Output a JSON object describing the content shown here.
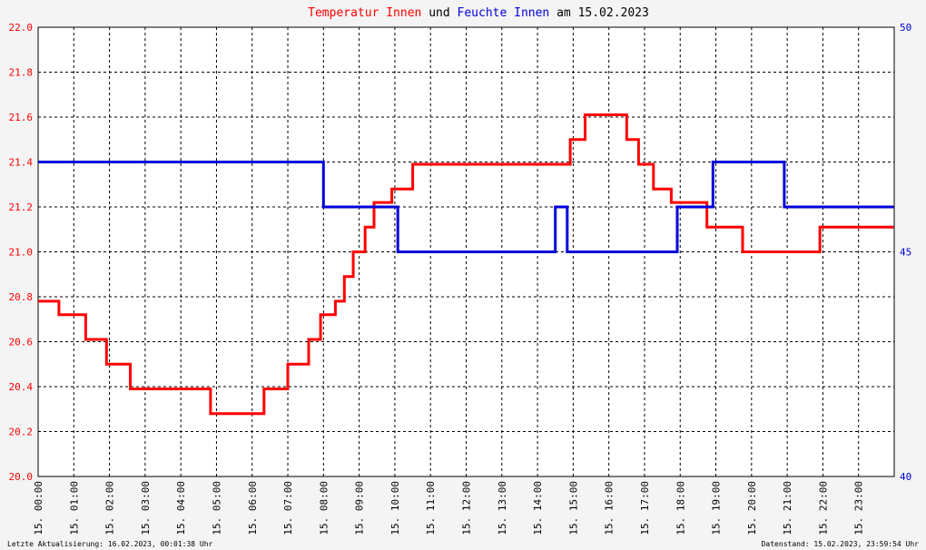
{
  "title": {
    "part1": "Temperatur Innen",
    "part2": " und ",
    "part3": "Feuchte Innen",
    "part4": " am 15.02.2023"
  },
  "footer": {
    "left": "Letzte Aktualisierung: 16.02.2023, 00:01:38 Uhr",
    "right": "Datenstand: 15.02.2023, 23:59:54 Uhr"
  },
  "colors": {
    "temperature": "#ff0000",
    "humidity": "#0000dd",
    "grid": "#000000"
  },
  "chart_data": {
    "type": "line",
    "title": "Temperatur Innen und Feuchte Innen am 15.02.2023",
    "xlabel": "",
    "ylabel": "",
    "x_ticks": [
      "15. 00:00",
      "15. 01:00",
      "15. 02:00",
      "15. 03:00",
      "15. 04:00",
      "15. 05:00",
      "15. 06:00",
      "15. 07:00",
      "15. 08:00",
      "15. 09:00",
      "15. 10:00",
      "15. 11:00",
      "15. 12:00",
      "15. 13:00",
      "15. 14:00",
      "15. 15:00",
      "15. 16:00",
      "15. 17:00",
      "15. 18:00",
      "15. 19:00",
      "15. 20:00",
      "15. 21:00",
      "15. 22:00",
      "15. 23:00"
    ],
    "xlim": [
      "15.02.2023 00:00",
      "15.02.2023 24:00"
    ],
    "y_left": {
      "min": 20.0,
      "max": 22.0,
      "ticks": [
        "20.0",
        "20.2",
        "20.4",
        "20.6",
        "20.8",
        "21.0",
        "21.2",
        "21.4",
        "21.6",
        "21.8",
        "22.0"
      ]
    },
    "y_right": {
      "min": 40,
      "max": 50,
      "ticks": [
        "40",
        "45",
        "50"
      ]
    },
    "grid": true,
    "series": [
      {
        "name": "Temperatur Innen",
        "axis": "left",
        "points": [
          [
            "00:00",
            20.78
          ],
          [
            "00:35",
            20.78
          ],
          [
            "00:35",
            20.72
          ],
          [
            "01:20",
            20.72
          ],
          [
            "01:20",
            20.61
          ],
          [
            "01:55",
            20.61
          ],
          [
            "01:55",
            20.5
          ],
          [
            "02:35",
            20.5
          ],
          [
            "02:35",
            20.39
          ],
          [
            "04:50",
            20.39
          ],
          [
            "04:50",
            20.28
          ],
          [
            "06:20",
            20.28
          ],
          [
            "06:20",
            20.39
          ],
          [
            "07:00",
            20.39
          ],
          [
            "07:00",
            20.5
          ],
          [
            "07:35",
            20.5
          ],
          [
            "07:35",
            20.61
          ],
          [
            "07:55",
            20.61
          ],
          [
            "07:55",
            20.72
          ],
          [
            "08:20",
            20.72
          ],
          [
            "08:20",
            20.78
          ],
          [
            "08:35",
            20.78
          ],
          [
            "08:35",
            20.89
          ],
          [
            "08:50",
            20.89
          ],
          [
            "08:50",
            21.0
          ],
          [
            "09:10",
            21.0
          ],
          [
            "09:10",
            21.11
          ],
          [
            "09:25",
            21.11
          ],
          [
            "09:25",
            21.22
          ],
          [
            "09:55",
            21.22
          ],
          [
            "09:55",
            21.28
          ],
          [
            "10:30",
            21.28
          ],
          [
            "10:30",
            21.39
          ],
          [
            "14:55",
            21.39
          ],
          [
            "14:55",
            21.5
          ],
          [
            "15:20",
            21.5
          ],
          [
            "15:20",
            21.61
          ],
          [
            "16:30",
            21.61
          ],
          [
            "16:30",
            21.5
          ],
          [
            "16:50",
            21.5
          ],
          [
            "16:50",
            21.39
          ],
          [
            "17:15",
            21.39
          ],
          [
            "17:15",
            21.28
          ],
          [
            "17:45",
            21.28
          ],
          [
            "17:45",
            21.22
          ],
          [
            "18:45",
            21.22
          ],
          [
            "18:45",
            21.11
          ],
          [
            "19:45",
            21.11
          ],
          [
            "19:45",
            21.0
          ],
          [
            "21:55",
            21.0
          ],
          [
            "21:55",
            21.11
          ],
          [
            "23:10",
            21.11
          ],
          [
            "23:10",
            21.11
          ],
          [
            "23:59",
            21.11
          ]
        ]
      },
      {
        "name": "Feuchte Innen",
        "axis": "right",
        "points": [
          [
            "00:00",
            47
          ],
          [
            "08:00",
            47
          ],
          [
            "08:00",
            46
          ],
          [
            "10:05",
            46
          ],
          [
            "10:05",
            45
          ],
          [
            "14:30",
            45
          ],
          [
            "14:30",
            46
          ],
          [
            "14:50",
            46
          ],
          [
            "14:50",
            45
          ],
          [
            "17:55",
            45
          ],
          [
            "17:55",
            46
          ],
          [
            "18:55",
            46
          ],
          [
            "18:55",
            47
          ],
          [
            "20:55",
            47
          ],
          [
            "20:55",
            46
          ],
          [
            "23:59",
            46
          ]
        ]
      }
    ]
  }
}
